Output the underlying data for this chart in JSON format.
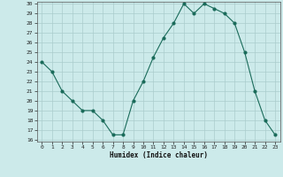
{
  "x": [
    0,
    1,
    2,
    3,
    4,
    5,
    6,
    7,
    8,
    9,
    10,
    11,
    12,
    13,
    14,
    15,
    16,
    17,
    18,
    19,
    20,
    21,
    22,
    23
  ],
  "y": [
    24,
    23,
    21,
    20,
    19,
    19,
    18,
    16.5,
    16.5,
    20,
    22,
    24.5,
    26.5,
    28,
    30,
    29,
    30,
    29.5,
    29,
    28,
    25,
    21,
    18,
    16.5
  ],
  "xlabel": "Humidex (Indice chaleur)",
  "line_color": "#1a6b5a",
  "marker": "o",
  "marker_size": 2.0,
  "bg_color": "#cceaea",
  "grid_color": "#aacccc",
  "ylim": [
    16,
    30
  ],
  "xlim": [
    -0.5,
    23.5
  ],
  "yticks": [
    16,
    17,
    18,
    19,
    20,
    21,
    22,
    23,
    24,
    25,
    26,
    27,
    28,
    29,
    30
  ],
  "xticks": [
    0,
    1,
    2,
    3,
    4,
    5,
    6,
    7,
    8,
    9,
    10,
    11,
    12,
    13,
    14,
    15,
    16,
    17,
    18,
    19,
    20,
    21,
    22,
    23
  ]
}
